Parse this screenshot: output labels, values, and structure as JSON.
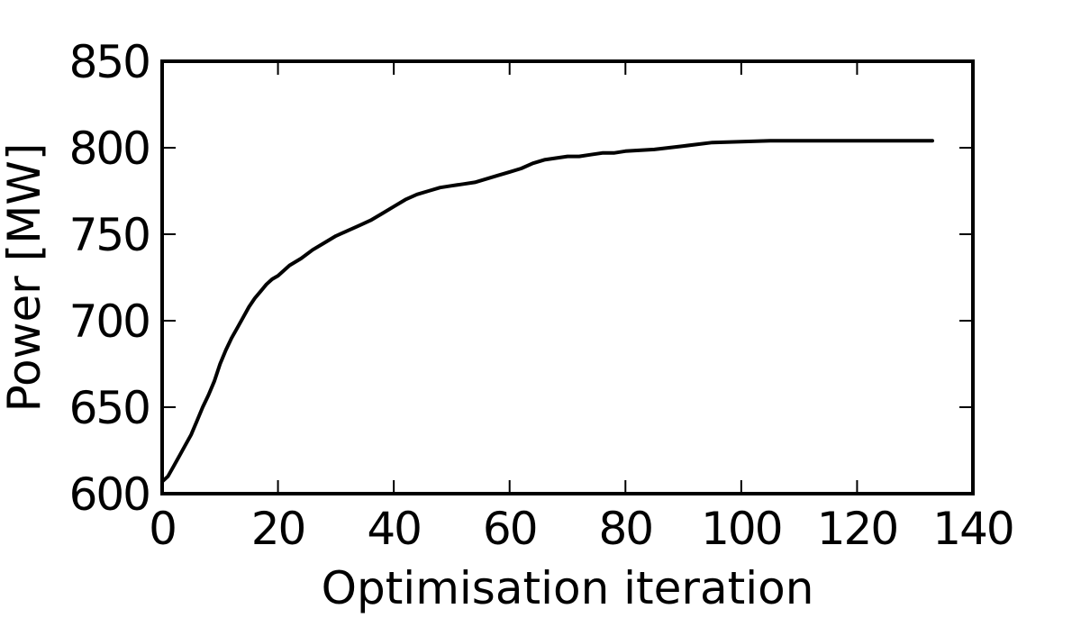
{
  "chart_data": {
    "type": "line",
    "title": "",
    "xlabel": "Optimisation iteration",
    "ylabel": "Power [MW]",
    "xlim": [
      0,
      140
    ],
    "ylim": [
      600,
      850
    ],
    "xticks": [
      0,
      20,
      40,
      60,
      80,
      100,
      120,
      140
    ],
    "yticks": [
      600,
      650,
      700,
      750,
      800,
      850
    ],
    "grid": false,
    "legend": "none",
    "colors": {
      "line": "#000000",
      "axes": "#000000",
      "background": "#ffffff"
    },
    "series": [
      {
        "x": [
          0,
          1,
          2,
          3,
          4,
          5,
          6,
          7,
          8,
          9,
          10,
          11,
          12,
          13,
          14,
          15,
          16,
          17,
          18,
          19,
          20,
          22,
          24,
          26,
          28,
          30,
          32,
          34,
          36,
          38,
          40,
          42,
          44,
          46,
          48,
          50,
          52,
          54,
          56,
          58,
          60,
          62,
          64,
          66,
          68,
          70,
          72,
          74,
          76,
          78,
          80,
          85,
          90,
          95,
          100,
          105,
          110,
          115,
          120,
          125,
          130,
          133
        ],
        "y": [
          607,
          610,
          616,
          622,
          628,
          634,
          642,
          650,
          657,
          665,
          675,
          683,
          690,
          696,
          702,
          708,
          713,
          717,
          721,
          724,
          726,
          732,
          736,
          741,
          745,
          749,
          752,
          755,
          758,
          762,
          766,
          770,
          773,
          775,
          777,
          778,
          779,
          780,
          782,
          784,
          786,
          788,
          791,
          793,
          794,
          795,
          795,
          796,
          797,
          797,
          798,
          799,
          801,
          803,
          803.5,
          804,
          804,
          804,
          804,
          804,
          804,
          804
        ]
      }
    ]
  }
}
